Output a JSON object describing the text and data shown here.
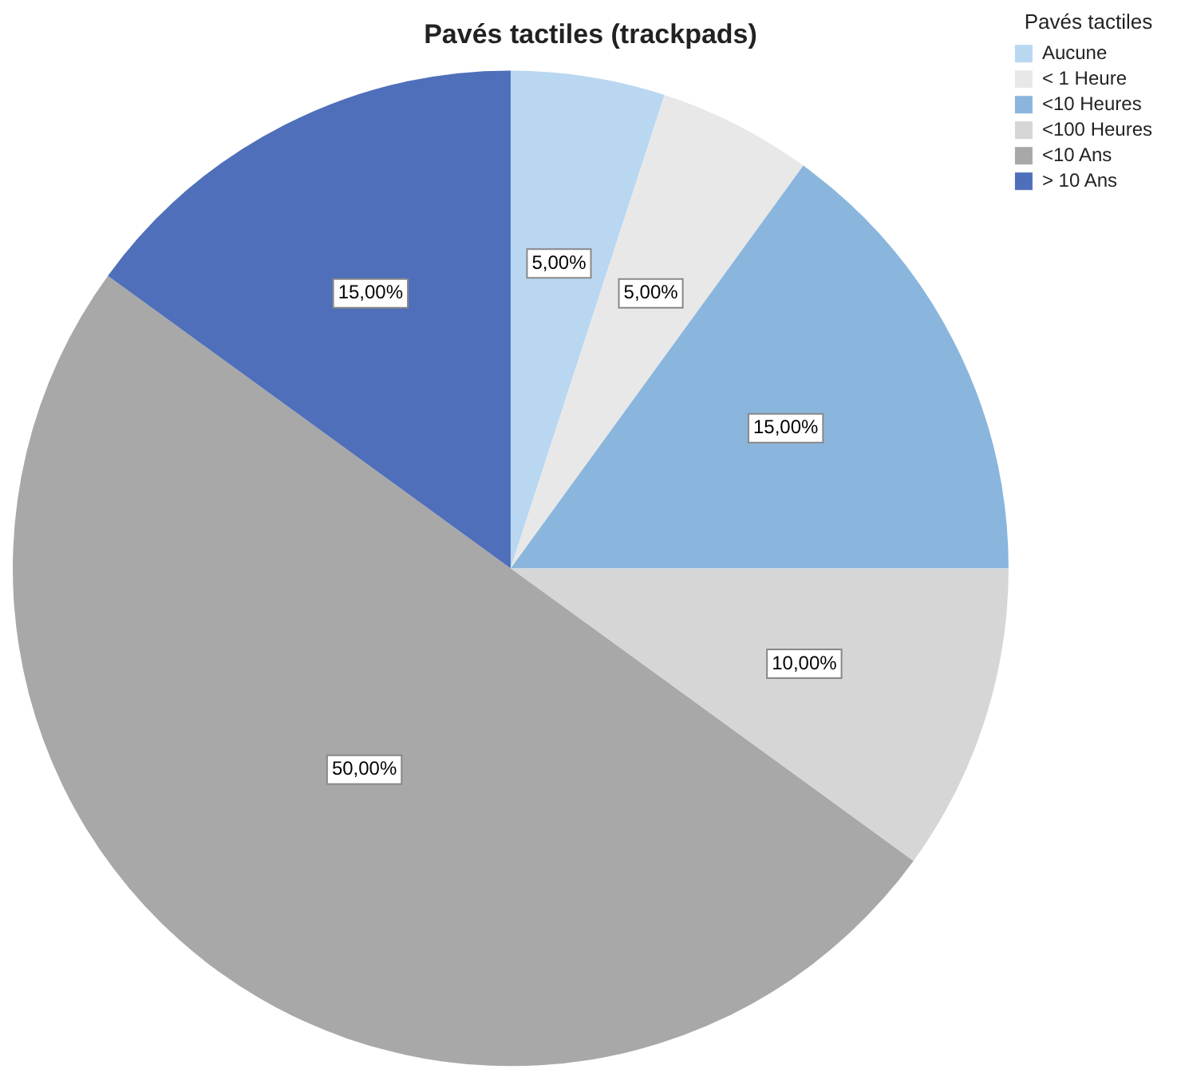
{
  "chart_data": {
    "type": "pie",
    "title": "Pavés tactiles (trackpads)",
    "legend_title": "Pavés tactiles",
    "legend": "top right",
    "categories": [
      "Aucune",
      "< 1 Heure",
      "<10 Heures",
      "<100 Heures",
      "<10 Ans",
      "> 10 Ans"
    ],
    "values": [
      5,
      5,
      15,
      10,
      50,
      15
    ],
    "value_labels": [
      "5,00%",
      "5,00%",
      "15,00%",
      "10,00%",
      "50,00%",
      "15,00%"
    ],
    "colors": [
      "#b9d7f1",
      "#e8e8e8",
      "#8ab6dd",
      "#d6d6d6",
      "#a8a8a8",
      "#4f6fba"
    ]
  }
}
